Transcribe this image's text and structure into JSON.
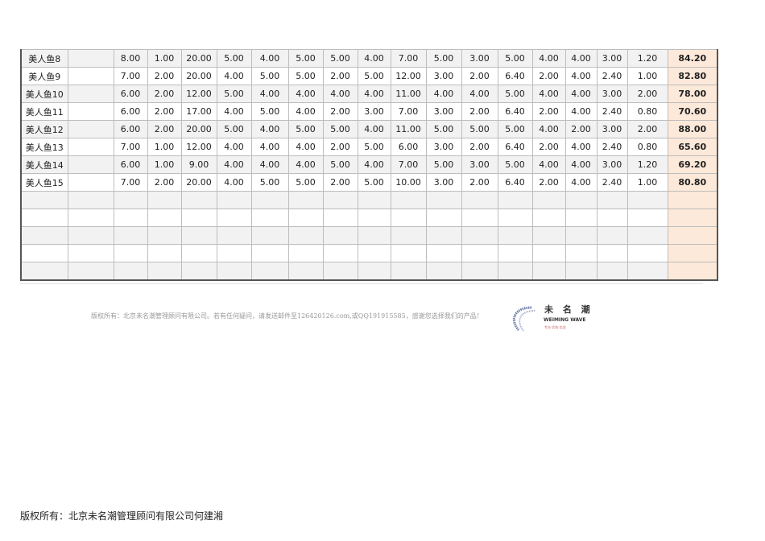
{
  "table": {
    "rows": [
      {
        "name": "美人鱼8",
        "values": [
          "8.00",
          "1.00",
          "20.00",
          "5.00",
          "4.00",
          "5.00",
          "5.00",
          "4.00",
          "7.00",
          "5.00",
          "3.00",
          "5.00",
          "4.00",
          "4.00",
          "3.00",
          "1.20"
        ],
        "total": "84.20"
      },
      {
        "name": "美人鱼9",
        "values": [
          "7.00",
          "2.00",
          "20.00",
          "4.00",
          "5.00",
          "5.00",
          "2.00",
          "5.00",
          "12.00",
          "3.00",
          "2.00",
          "6.40",
          "2.00",
          "4.00",
          "2.40",
          "1.00"
        ],
        "total": "82.80"
      },
      {
        "name": "美人鱼10",
        "values": [
          "6.00",
          "2.00",
          "12.00",
          "5.00",
          "4.00",
          "4.00",
          "4.00",
          "4.00",
          "11.00",
          "4.00",
          "4.00",
          "5.00",
          "4.00",
          "4.00",
          "3.00",
          "2.00"
        ],
        "total": "78.00"
      },
      {
        "name": "美人鱼11",
        "values": [
          "6.00",
          "2.00",
          "17.00",
          "4.00",
          "5.00",
          "4.00",
          "2.00",
          "3.00",
          "7.00",
          "3.00",
          "2.00",
          "6.40",
          "2.00",
          "4.00",
          "2.40",
          "0.80"
        ],
        "total": "70.60"
      },
      {
        "name": "美人鱼12",
        "values": [
          "6.00",
          "2.00",
          "20.00",
          "5.00",
          "4.00",
          "5.00",
          "5.00",
          "4.00",
          "11.00",
          "5.00",
          "5.00",
          "5.00",
          "4.00",
          "2.00",
          "3.00",
          "2.00"
        ],
        "total": "88.00"
      },
      {
        "name": "美人鱼13",
        "values": [
          "7.00",
          "1.00",
          "12.00",
          "4.00",
          "4.00",
          "4.00",
          "2.00",
          "5.00",
          "6.00",
          "3.00",
          "2.00",
          "6.40",
          "2.00",
          "4.00",
          "2.40",
          "0.80"
        ],
        "total": "65.60"
      },
      {
        "name": "美人鱼14",
        "values": [
          "6.00",
          "1.00",
          "9.00",
          "4.00",
          "4.00",
          "4.00",
          "5.00",
          "4.00",
          "7.00",
          "5.00",
          "3.00",
          "5.00",
          "4.00",
          "4.00",
          "3.00",
          "1.20"
        ],
        "total": "69.20"
      },
      {
        "name": "美人鱼15",
        "values": [
          "7.00",
          "2.00",
          "20.00",
          "4.00",
          "5.00",
          "5.00",
          "2.00",
          "5.00",
          "10.00",
          "3.00",
          "2.00",
          "6.40",
          "2.00",
          "4.00",
          "2.40",
          "1.00"
        ],
        "total": "80.80"
      }
    ],
    "empty_rows": 5,
    "total_color": "#fde9d9"
  },
  "copyright_notice": "版权所有：北京未名潮管理顾问有限公司。若有任何疑问，请发送邮件至126420126.com,或QQ191915585，感谢您选择我们的产品！",
  "logo": {
    "cn": "未 名 潮",
    "en": "WEIMING WAVE",
    "sub": "专业·实效·实战"
  },
  "footer": "版权所有：北京未名潮管理顾问有限公司何建湘"
}
